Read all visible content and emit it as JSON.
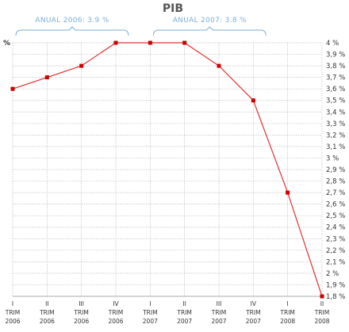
{
  "chart_data": {
    "type": "line",
    "title": "PIB",
    "ylabel": "%",
    "categories": [
      [
        "I",
        "TRIM",
        "2006"
      ],
      [
        "II",
        "TRIM",
        "2006"
      ],
      [
        "III",
        "TRIM",
        "2006"
      ],
      [
        "IV",
        "TRIM",
        "2006"
      ],
      [
        "I",
        "TRIM",
        "2007"
      ],
      [
        "II",
        "TRIM",
        "2007"
      ],
      [
        "III",
        "TRIM",
        "2007"
      ],
      [
        "IV",
        "TRIM",
        "2007"
      ],
      [
        "I",
        "TRIM",
        "2008"
      ],
      [
        "II",
        "TRIM",
        "2008"
      ]
    ],
    "values": [
      3.6,
      3.7,
      3.8,
      4.0,
      4.0,
      4.0,
      3.8,
      3.5,
      2.7,
      1.8
    ],
    "ylim": [
      1.8,
      4.0
    ],
    "yticks": [
      "4 %",
      "3,9 %",
      "3,8 %",
      "3,7 %",
      "3,6 %",
      "3,5 %",
      "3,4 %",
      "3,3 %",
      "3,2 %",
      "3,1 %",
      "3 %",
      "2,9 %",
      "2,8 %",
      "2,7 %",
      "2,6 %",
      "2,5 %",
      "2,4 %",
      "2,3 %",
      "2,2 %",
      "2,1 %",
      "2 %",
      "1,9 %",
      "1,8 %"
    ],
    "annotations": [
      {
        "text": "ANUAL 2006: 3.9 %",
        "from": 0,
        "to": 3
      },
      {
        "text": "ANUAL 2007: 3.8 %",
        "from": 4,
        "to": 7
      }
    ],
    "grid": true,
    "line_color": "#e03030",
    "marker_color": "#cc0000",
    "grid_color": "#bbbbbb",
    "annotation_color": "#7aaed6"
  }
}
